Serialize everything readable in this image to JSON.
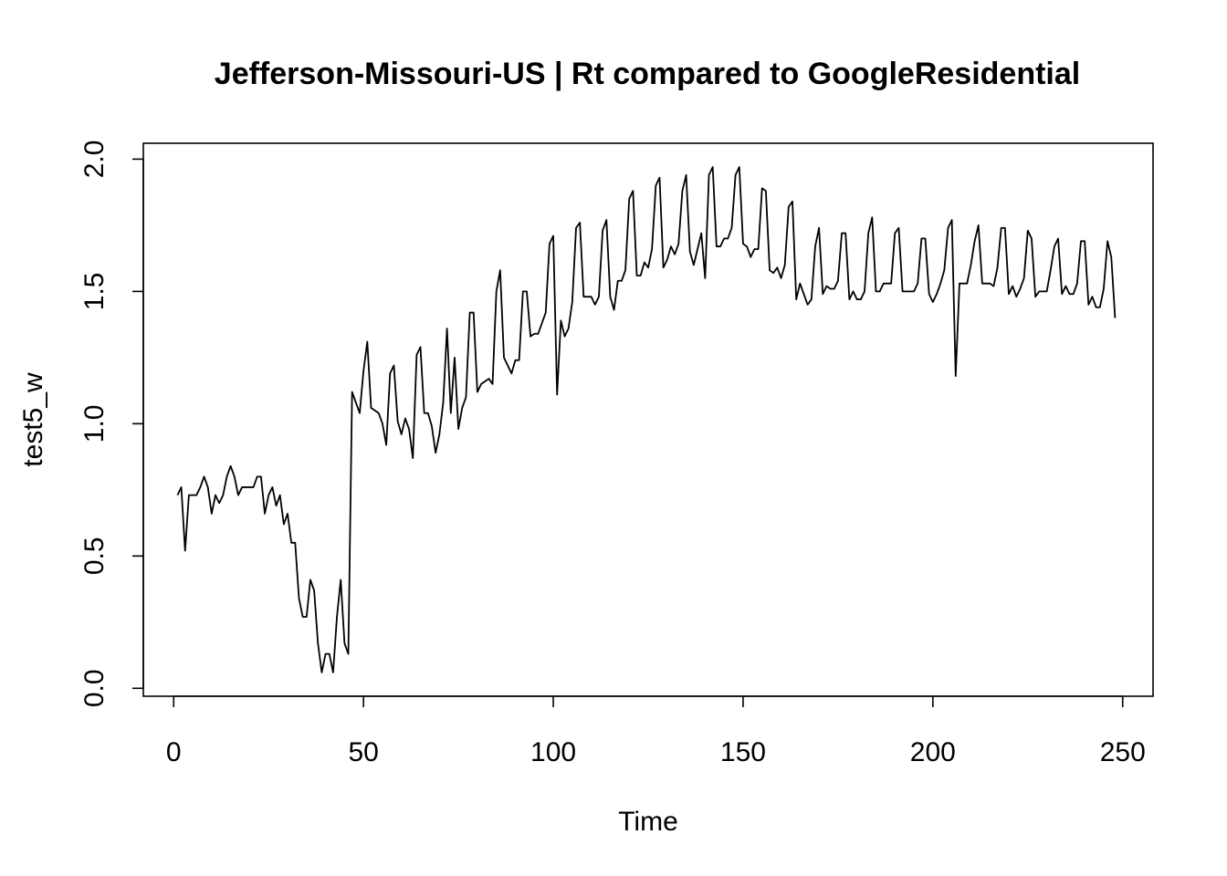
{
  "chart_data": {
    "type": "line",
    "title": "Jefferson-Missouri-US | Rt compared to GoogleResidential",
    "xlabel": "Time",
    "ylabel": "test5_w",
    "xlim": [
      -8,
      258
    ],
    "ylim": [
      -0.03,
      2.06
    ],
    "x_ticks": [
      0,
      50,
      100,
      150,
      200,
      250
    ],
    "y_ticks": [
      0.0,
      0.5,
      1.0,
      1.5,
      2.0
    ],
    "x_tick_labels": [
      "0",
      "50",
      "100",
      "150",
      "200",
      "250"
    ],
    "y_tick_labels": [
      "0.0",
      "0.5",
      "1.0",
      "1.5",
      "2.0"
    ],
    "grid": false,
    "series": [
      {
        "x_start": 1,
        "values": [
          0.73,
          0.76,
          0.52,
          0.73,
          0.73,
          0.73,
          0.76,
          0.8,
          0.76,
          0.66,
          0.73,
          0.7,
          0.73,
          0.8,
          0.84,
          0.8,
          0.73,
          0.76,
          0.76,
          0.76,
          0.76,
          0.8,
          0.8,
          0.66,
          0.73,
          0.76,
          0.69,
          0.73,
          0.62,
          0.66,
          0.55,
          0.55,
          0.34,
          0.27,
          0.27,
          0.41,
          0.37,
          0.17,
          0.06,
          0.13,
          0.13,
          0.06,
          0.27,
          0.41,
          0.17,
          0.13,
          1.12,
          1.08,
          1.04,
          1.2,
          1.31,
          1.06,
          1.05,
          1.04,
          1.0,
          0.92,
          1.19,
          1.22,
          1.01,
          0.96,
          1.02,
          0.98,
          0.87,
          1.26,
          1.29,
          1.04,
          1.04,
          0.99,
          0.89,
          0.96,
          1.08,
          1.36,
          1.04,
          1.25,
          0.98,
          1.06,
          1.1,
          1.42,
          1.42,
          1.12,
          1.15,
          1.16,
          1.17,
          1.15,
          1.5,
          1.58,
          1.25,
          1.22,
          1.19,
          1.24,
          1.24,
          1.5,
          1.5,
          1.33,
          1.34,
          1.34,
          1.38,
          1.42,
          1.68,
          1.71,
          1.11,
          1.39,
          1.33,
          1.36,
          1.46,
          1.74,
          1.76,
          1.48,
          1.48,
          1.48,
          1.45,
          1.48,
          1.73,
          1.77,
          1.48,
          1.43,
          1.54,
          1.54,
          1.58,
          1.85,
          1.88,
          1.56,
          1.56,
          1.61,
          1.59,
          1.66,
          1.9,
          1.93,
          1.59,
          1.62,
          1.67,
          1.64,
          1.68,
          1.88,
          1.94,
          1.65,
          1.6,
          1.66,
          1.72,
          1.55,
          1.94,
          1.97,
          1.67,
          1.67,
          1.7,
          1.7,
          1.74,
          1.94,
          1.97,
          1.68,
          1.67,
          1.63,
          1.66,
          1.66,
          1.89,
          1.88,
          1.58,
          1.57,
          1.59,
          1.55,
          1.6,
          1.82,
          1.84,
          1.47,
          1.53,
          1.49,
          1.45,
          1.47,
          1.67,
          1.74,
          1.49,
          1.52,
          1.51,
          1.51,
          1.54,
          1.72,
          1.72,
          1.47,
          1.5,
          1.47,
          1.47,
          1.5,
          1.72,
          1.78,
          1.5,
          1.5,
          1.53,
          1.53,
          1.53,
          1.72,
          1.74,
          1.5,
          1.5,
          1.5,
          1.5,
          1.53,
          1.7,
          1.7,
          1.49,
          1.46,
          1.49,
          1.53,
          1.58,
          1.74,
          1.77,
          1.18,
          1.53,
          1.53,
          1.53,
          1.6,
          1.69,
          1.75,
          1.53,
          1.53,
          1.53,
          1.52,
          1.59,
          1.74,
          1.74,
          1.49,
          1.52,
          1.48,
          1.51,
          1.55,
          1.73,
          1.7,
          1.48,
          1.5,
          1.5,
          1.5,
          1.58,
          1.67,
          1.7,
          1.49,
          1.52,
          1.49,
          1.49,
          1.53,
          1.69,
          1.69,
          1.45,
          1.48,
          1.44,
          1.44,
          1.51,
          1.69,
          1.63,
          1.4
        ]
      }
    ]
  }
}
